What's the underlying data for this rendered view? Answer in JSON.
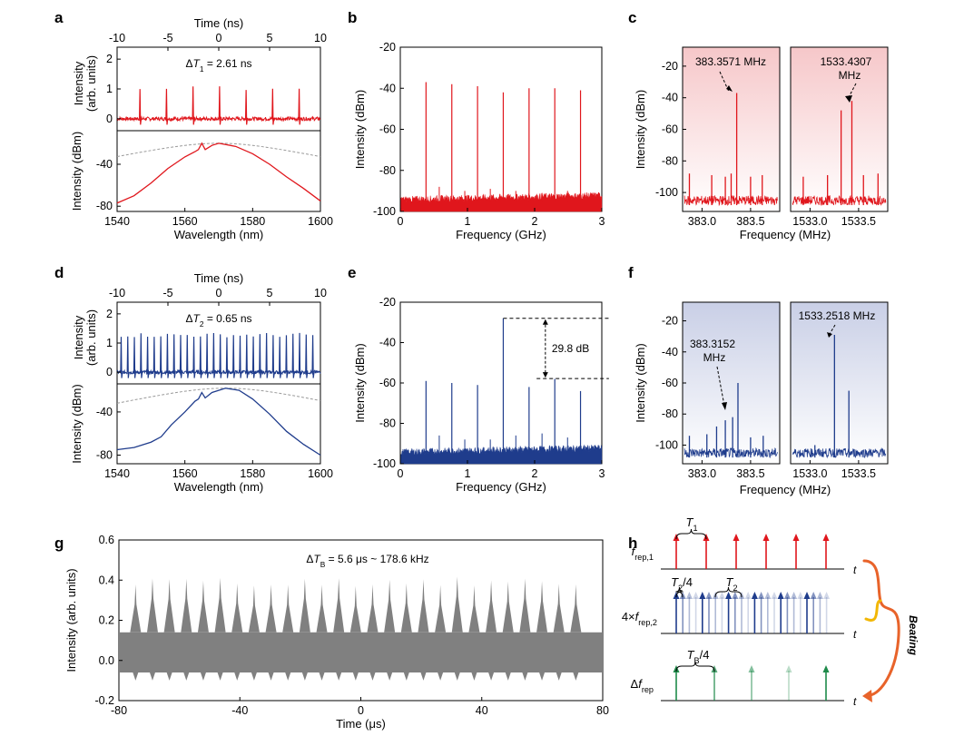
{
  "colors": {
    "red": "#e0161c",
    "blue": "#1f3c8c",
    "gray": "#808080",
    "green": "#1e8a4a",
    "dashed": "#9a9a9a",
    "orange": "#e8632a",
    "yellow": "#f2b705"
  },
  "panels": {
    "a": "a",
    "b": "b",
    "c": "c",
    "d": "d",
    "e": "e",
    "f": "f",
    "g": "g",
    "h": "h"
  },
  "chart_data": [
    {
      "id": "a-top",
      "type": "line",
      "xlabel": "Time (ns)",
      "ylabel_line1": "Intensity",
      "ylabel_line2": "(arb. units)",
      "xlim": [
        -10,
        10
      ],
      "ylim": [
        -0.4,
        2.4
      ],
      "xticks": [
        "-10",
        "-5",
        "0",
        "5",
        "10"
      ],
      "yticks": [
        "0",
        "1",
        "2"
      ],
      "annotation_prefix": "ΔT",
      "annotation_sub": "1",
      "annotation_value": " = 2.61 ns",
      "pulse_times_ns": [
        -7.75,
        -5.14,
        -2.53,
        0.08,
        2.69,
        5.3,
        7.91
      ],
      "pulse_peak": 1.05
    },
    {
      "id": "a-bottom",
      "type": "line",
      "xlabel": "Wavelength (nm)",
      "ylabel": "Intensity (dBm)",
      "xlim": [
        1540,
        1600
      ],
      "ylim": [
        -85,
        -8
      ],
      "xticks": [
        "1540",
        "1560",
        "1580",
        "1600"
      ],
      "yticks": [
        "-80",
        "-40"
      ],
      "spectrum_points": [
        [
          1540,
          -77
        ],
        [
          1545,
          -70
        ],
        [
          1550,
          -58
        ],
        [
          1555,
          -44
        ],
        [
          1560,
          -33
        ],
        [
          1563,
          -28
        ],
        [
          1564,
          -26
        ],
        [
          1565,
          -20
        ],
        [
          1566,
          -26
        ],
        [
          1568,
          -22
        ],
        [
          1570,
          -20
        ],
        [
          1575,
          -23
        ],
        [
          1580,
          -30
        ],
        [
          1585,
          -40
        ],
        [
          1590,
          -52
        ],
        [
          1595,
          -63
        ],
        [
          1600,
          -75
        ]
      ],
      "fit_peak_nm": 1570,
      "fit_peak_dbm": -20
    },
    {
      "id": "b",
      "type": "bar",
      "xlabel": "Frequency (GHz)",
      "ylabel": "Intensity (dBm)",
      "xlim": [
        0,
        3
      ],
      "ylim": [
        -100,
        -20
      ],
      "xticks": [
        "0",
        "1",
        "2",
        "3"
      ],
      "yticks": [
        "-20",
        "-40",
        "-60",
        "-80",
        "-100"
      ],
      "x": [
        0.383,
        0.767,
        1.15,
        1.533,
        1.917,
        2.3,
        2.683
      ],
      "values": [
        -37,
        -38,
        -39,
        -42,
        -40,
        -40,
        -41
      ],
      "small_x": [
        0.58,
        0.96,
        1.34,
        1.72,
        2.11,
        2.49
      ],
      "small_values": [
        -88,
        -90,
        -89,
        -90,
        -91,
        -90
      ],
      "noise_floor": -95
    },
    {
      "id": "c-left",
      "type": "bar",
      "ylabel": "Intensity (dBm)",
      "xlim": [
        382.8,
        383.8
      ],
      "ylim": [
        -112,
        -8
      ],
      "xticks": [
        "383.0",
        "383.5"
      ],
      "yticks": [
        "-20",
        "-40",
        "-60",
        "-80",
        "-100"
      ],
      "label": "383.3571 MHz",
      "x": [
        382.87,
        383.1,
        383.24,
        383.3,
        383.3571,
        383.5,
        383.62
      ],
      "values": [
        -88,
        -89,
        -90,
        -88,
        -37,
        -90,
        -89
      ]
    },
    {
      "id": "c-right",
      "type": "bar",
      "xlabel": "Frequency (MHz)",
      "xlim": [
        1532.8,
        1533.8
      ],
      "ylim": [
        -112,
        -8
      ],
      "xticks": [
        "1533.0",
        "1533.5"
      ],
      "label_line1": "1533.4307",
      "label_line2": "MHz",
      "x": [
        1532.93,
        1533.18,
        1533.32,
        1533.4307,
        1533.55,
        1533.7
      ],
      "values": [
        -90,
        -89,
        -48,
        -42,
        -89,
        -88
      ]
    },
    {
      "id": "d-top",
      "type": "line",
      "xlabel": "Time (ns)",
      "ylabel_line1": "Intensity",
      "ylabel_line2": "(arb. units)",
      "xlim": [
        -10,
        10
      ],
      "ylim": [
        -0.4,
        2.4
      ],
      "xticks": [
        "-10",
        "-5",
        "0",
        "5",
        "10"
      ],
      "yticks": [
        "0",
        "1",
        "2"
      ],
      "annotation_prefix": "ΔT",
      "annotation_sub": "2",
      "annotation_value": " = 0.65 ns",
      "pulse_period_ns": 0.65,
      "pulse_first_ns": -9.6,
      "pulse_count": 30,
      "pulse_peak": 1.3
    },
    {
      "id": "d-bottom",
      "type": "line",
      "xlabel": "Wavelength (nm)",
      "ylabel": "Intensity (dBm)",
      "xlim": [
        1540,
        1600
      ],
      "ylim": [
        -88,
        -14
      ],
      "xticks": [
        "1540",
        "1560",
        "1580",
        "1600"
      ],
      "yticks": [
        "-80",
        "-40"
      ],
      "spectrum_points": [
        [
          1540,
          -75
        ],
        [
          1545,
          -73
        ],
        [
          1550,
          -68
        ],
        [
          1553,
          -63
        ],
        [
          1556,
          -52
        ],
        [
          1560,
          -40
        ],
        [
          1563,
          -30
        ],
        [
          1564,
          -28
        ],
        [
          1565,
          -22
        ],
        [
          1566,
          -27
        ],
        [
          1568,
          -22
        ],
        [
          1572,
          -18
        ],
        [
          1576,
          -20
        ],
        [
          1580,
          -28
        ],
        [
          1585,
          -42
        ],
        [
          1590,
          -58
        ],
        [
          1595,
          -70
        ],
        [
          1600,
          -80
        ]
      ],
      "fit_peak_nm": 1572,
      "fit_peak_dbm": -18
    },
    {
      "id": "e",
      "type": "bar",
      "xlabel": "Frequency (GHz)",
      "ylabel": "Intensity (dBm)",
      "xlim": [
        0,
        3
      ],
      "ylim": [
        -100,
        -20
      ],
      "xticks": [
        "0",
        "1",
        "2",
        "3"
      ],
      "yticks": [
        "-20",
        "-40",
        "-60",
        "-80",
        "-100"
      ],
      "x": [
        0.383,
        0.767,
        1.15,
        1.533,
        1.917,
        2.3,
        2.683
      ],
      "values": [
        -59,
        -60,
        -61,
        -28,
        -62,
        -58,
        -64
      ],
      "small_x": [
        0.58,
        0.96,
        1.34,
        1.72,
        2.11,
        2.49
      ],
      "small_values": [
        -86,
        -88,
        -88,
        -86,
        -85,
        -87
      ],
      "noise_floor": -95,
      "dynamic_range_label": "29.8 dB",
      "dr_top": -28,
      "dr_bottom": -57.8
    },
    {
      "id": "f-left",
      "type": "bar",
      "ylabel": "Intensity (dBm)",
      "xlim": [
        382.8,
        383.8
      ],
      "ylim": [
        -112,
        -8
      ],
      "xticks": [
        "383.0",
        "383.5"
      ],
      "yticks": [
        "-20",
        "-40",
        "-60",
        "-80",
        "-100"
      ],
      "label_line1": "383.3152",
      "label_line2": "MHz",
      "x": [
        382.87,
        383.05,
        383.15,
        383.24,
        383.3152,
        383.37,
        383.5,
        383.63
      ],
      "values": [
        -94,
        -93,
        -88,
        -84,
        -82,
        -60,
        -95,
        -94
      ]
    },
    {
      "id": "f-right",
      "type": "bar",
      "xlabel": "Frequency (MHz)",
      "xlim": [
        1532.8,
        1533.8
      ],
      "ylim": [
        -112,
        -8
      ],
      "xticks": [
        "1533.0",
        "1533.5"
      ],
      "label": "1533.2518 MHz",
      "x": [
        1533.2518,
        1533.4,
        1533.05
      ],
      "values": [
        -29,
        -65,
        -100
      ]
    },
    {
      "id": "g",
      "type": "line",
      "xlabel": "Time (μs)",
      "ylabel": "Intensity (arb. units)",
      "xlim": [
        -80,
        80
      ],
      "ylim": [
        -0.2,
        0.6
      ],
      "xticks": [
        "-80",
        "-40",
        "0",
        "40",
        "80"
      ],
      "yticks": [
        "-0.2",
        "0.0",
        "0.2",
        "0.4",
        "0.6"
      ],
      "annotation_prefix": "ΔT",
      "annotation_sub": "B",
      "annotation_value": " = 5.6 μs ~ 178.6 kHz",
      "burst_period_us": 5.6,
      "burst_first_us": -74.5,
      "burst_count": 27,
      "burst_peak": 0.41,
      "band_top": 0.14,
      "band_bottom": -0.06,
      "burst_min": -0.1
    },
    {
      "id": "h",
      "type": "diagram",
      "row1_label": "f",
      "row1_sub": "rep,1",
      "row1_bracket": "T",
      "row1_bracket_sub": "1",
      "row2_label": "4×f",
      "row2_sub": "rep,2",
      "row2_bracket_a": "T",
      "row2_bracket_a_sub": "2",
      "row2_bracket_a_suffix": "/4",
      "row2_bracket_b": "T",
      "row2_bracket_b_sub": "2",
      "row3_label": "Δf",
      "row3_sub": "rep",
      "row3_bracket": "T",
      "row3_bracket_sub": "B",
      "row3_bracket_suffix": "/4",
      "axis_label": "t",
      "beating_label": "Beating"
    }
  ]
}
